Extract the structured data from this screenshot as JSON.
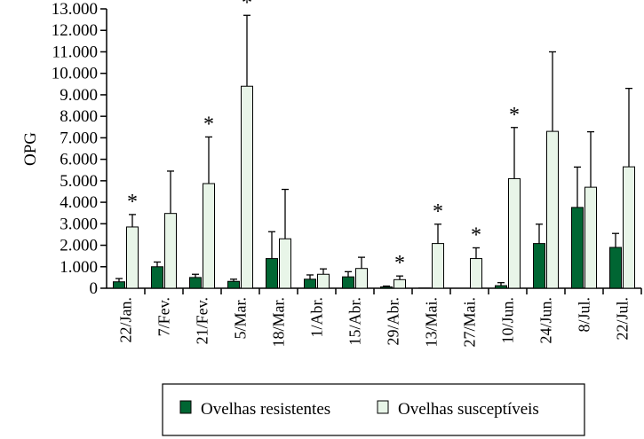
{
  "chart_data": {
    "type": "bar",
    "ylabel": "OPG",
    "ylim": [
      0,
      13000
    ],
    "yticks": [
      "0",
      "1.000",
      "2.000",
      "3.000",
      "4.000",
      "5.000",
      "6.000",
      "7.000",
      "8.000",
      "9.000",
      "10.000",
      "11.000",
      "12.000",
      "13.000"
    ],
    "categories": [
      "22/Jan.",
      "7/Fev.",
      "21/Fev.",
      "5/Mar.",
      "18/Mar.",
      "1/Abr.",
      "15/Abr.",
      "29/Abr.",
      "13/Mai.",
      "27/Mai.",
      "10/Jun.",
      "24/Jun.",
      "8/Jul.",
      "22/Jul."
    ],
    "series": [
      {
        "name": "Ovelhas resistentes",
        "color": "#006633",
        "values": [
          300,
          1000,
          500,
          320,
          1380,
          420,
          530,
          60,
          10,
          0,
          120,
          2080,
          3760,
          1900
        ],
        "errors": [
          150,
          220,
          150,
          100,
          1250,
          200,
          240,
          40,
          0,
          0,
          140,
          900,
          1880,
          650
        ]
      },
      {
        "name": "Ovelhas susceptíveis",
        "color": "#e8f5e8",
        "values": [
          2850,
          3480,
          4870,
          9400,
          2300,
          650,
          920,
          400,
          2080,
          1380,
          5100,
          7300,
          4700,
          5650
        ],
        "errors": [
          580,
          1970,
          2170,
          3300,
          2300,
          250,
          520,
          170,
          900,
          500,
          2380,
          3700,
          2580,
          3650
        ]
      }
    ],
    "significant": [
      "22/Jan.",
      "21/Fev.",
      "5/Mar.",
      "29/Abr.",
      "13/Mai.",
      "27/Mai.",
      "10/Jun."
    ],
    "significance_marker": "*",
    "legend_position": "bottom-center",
    "grid": false
  }
}
